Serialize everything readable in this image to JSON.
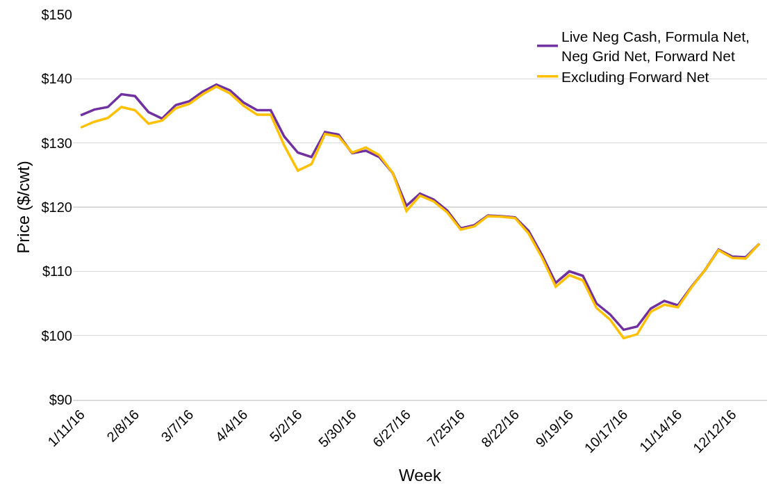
{
  "chart_data": {
    "type": "line",
    "xlabel": "Week",
    "ylabel": "Price ($/cwt)",
    "x": [
      "2016-01-11",
      "2016-01-18",
      "2016-01-25",
      "2016-02-01",
      "2016-02-08",
      "2016-02-15",
      "2016-02-22",
      "2016-02-29",
      "2016-03-07",
      "2016-03-14",
      "2016-03-21",
      "2016-03-28",
      "2016-04-04",
      "2016-04-11",
      "2016-04-18",
      "2016-04-25",
      "2016-05-02",
      "2016-05-09",
      "2016-05-16",
      "2016-05-23",
      "2016-05-30",
      "2016-06-06",
      "2016-06-13",
      "2016-06-20",
      "2016-06-27",
      "2016-07-04",
      "2016-07-11",
      "2016-07-18",
      "2016-07-25",
      "2016-08-01",
      "2016-08-08",
      "2016-08-15",
      "2016-08-22",
      "2016-08-29",
      "2016-09-05",
      "2016-09-12",
      "2016-09-19",
      "2016-09-26",
      "2016-10-03",
      "2016-10-10",
      "2016-10-17",
      "2016-10-24",
      "2016-10-31",
      "2016-11-07",
      "2016-11-14",
      "2016-11-21",
      "2016-11-28",
      "2016-12-05",
      "2016-12-12",
      "2016-12-19",
      "2016-12-26"
    ],
    "series": [
      {
        "name": "Live Neg Cash, Formula Net, Neg Grid Net, Forward Net",
        "color": "#7030a0",
        "values": [
          134.3,
          135.2,
          135.6,
          137.6,
          137.3,
          134.8,
          133.8,
          135.9,
          136.5,
          138.0,
          139.1,
          138.2,
          136.3,
          135.1,
          135.1,
          131.0,
          128.5,
          127.8,
          131.7,
          131.3,
          128.4,
          128.8,
          127.8,
          125.3,
          120.2,
          122.1,
          121.2,
          119.5,
          116.7,
          117.2,
          118.7,
          118.6,
          118.4,
          116.3,
          112.5,
          108.2,
          110.0,
          109.3,
          105.0,
          103.3,
          100.9,
          101.4,
          104.2,
          105.4,
          104.7,
          107.6,
          110.2,
          113.4,
          112.3,
          112.2,
          114.3
        ]
      },
      {
        "name": "Excluding Forward Net",
        "color": "#ffc000",
        "values": [
          132.4,
          133.3,
          133.9,
          135.6,
          135.1,
          133.0,
          133.5,
          135.4,
          136.1,
          137.6,
          138.8,
          137.7,
          135.8,
          134.4,
          134.4,
          129.6,
          125.7,
          126.7,
          131.4,
          131.0,
          128.5,
          129.3,
          128.1,
          125.3,
          119.4,
          121.8,
          120.9,
          119.2,
          116.5,
          117.0,
          118.6,
          118.5,
          118.3,
          115.9,
          112.1,
          107.6,
          109.4,
          108.6,
          104.3,
          102.5,
          99.6,
          100.2,
          103.7,
          104.8,
          104.4,
          107.5,
          110.2,
          113.3,
          112.1,
          112.0,
          114.3
        ]
      }
    ],
    "xlim": [
      "2016-01-07",
      "2016-12-30"
    ],
    "xticks": [
      {
        "value": "2016-01-11",
        "label": "1/11/16"
      },
      {
        "value": "2016-02-08",
        "label": "2/8/16"
      },
      {
        "value": "2016-03-07",
        "label": "3/7/16"
      },
      {
        "value": "2016-04-04",
        "label": "4/4/16"
      },
      {
        "value": "2016-05-02",
        "label": "5/2/16"
      },
      {
        "value": "2016-05-30",
        "label": "5/30/16"
      },
      {
        "value": "2016-06-27",
        "label": "6/27/16"
      },
      {
        "value": "2016-07-25",
        "label": "7/25/16"
      },
      {
        "value": "2016-08-22",
        "label": "8/22/16"
      },
      {
        "value": "2016-09-19",
        "label": "9/19/16"
      },
      {
        "value": "2016-10-17",
        "label": "10/17/16"
      },
      {
        "value": "2016-11-14",
        "label": "11/14/16"
      },
      {
        "value": "2016-12-12",
        "label": "12/12/16"
      }
    ],
    "ylim": [
      90,
      150
    ],
    "yticks": [
      {
        "value": 90,
        "label": "$90"
      },
      {
        "value": 100,
        "label": "$100"
      },
      {
        "value": 110,
        "label": "$110"
      },
      {
        "value": 120,
        "label": "$120"
      },
      {
        "value": 130,
        "label": "$130"
      },
      {
        "value": 140,
        "label": "$140"
      },
      {
        "value": 150,
        "label": "$150"
      }
    ],
    "grid": "y",
    "legend": "top right",
    "marker": "none",
    "line_style": "solid"
  }
}
